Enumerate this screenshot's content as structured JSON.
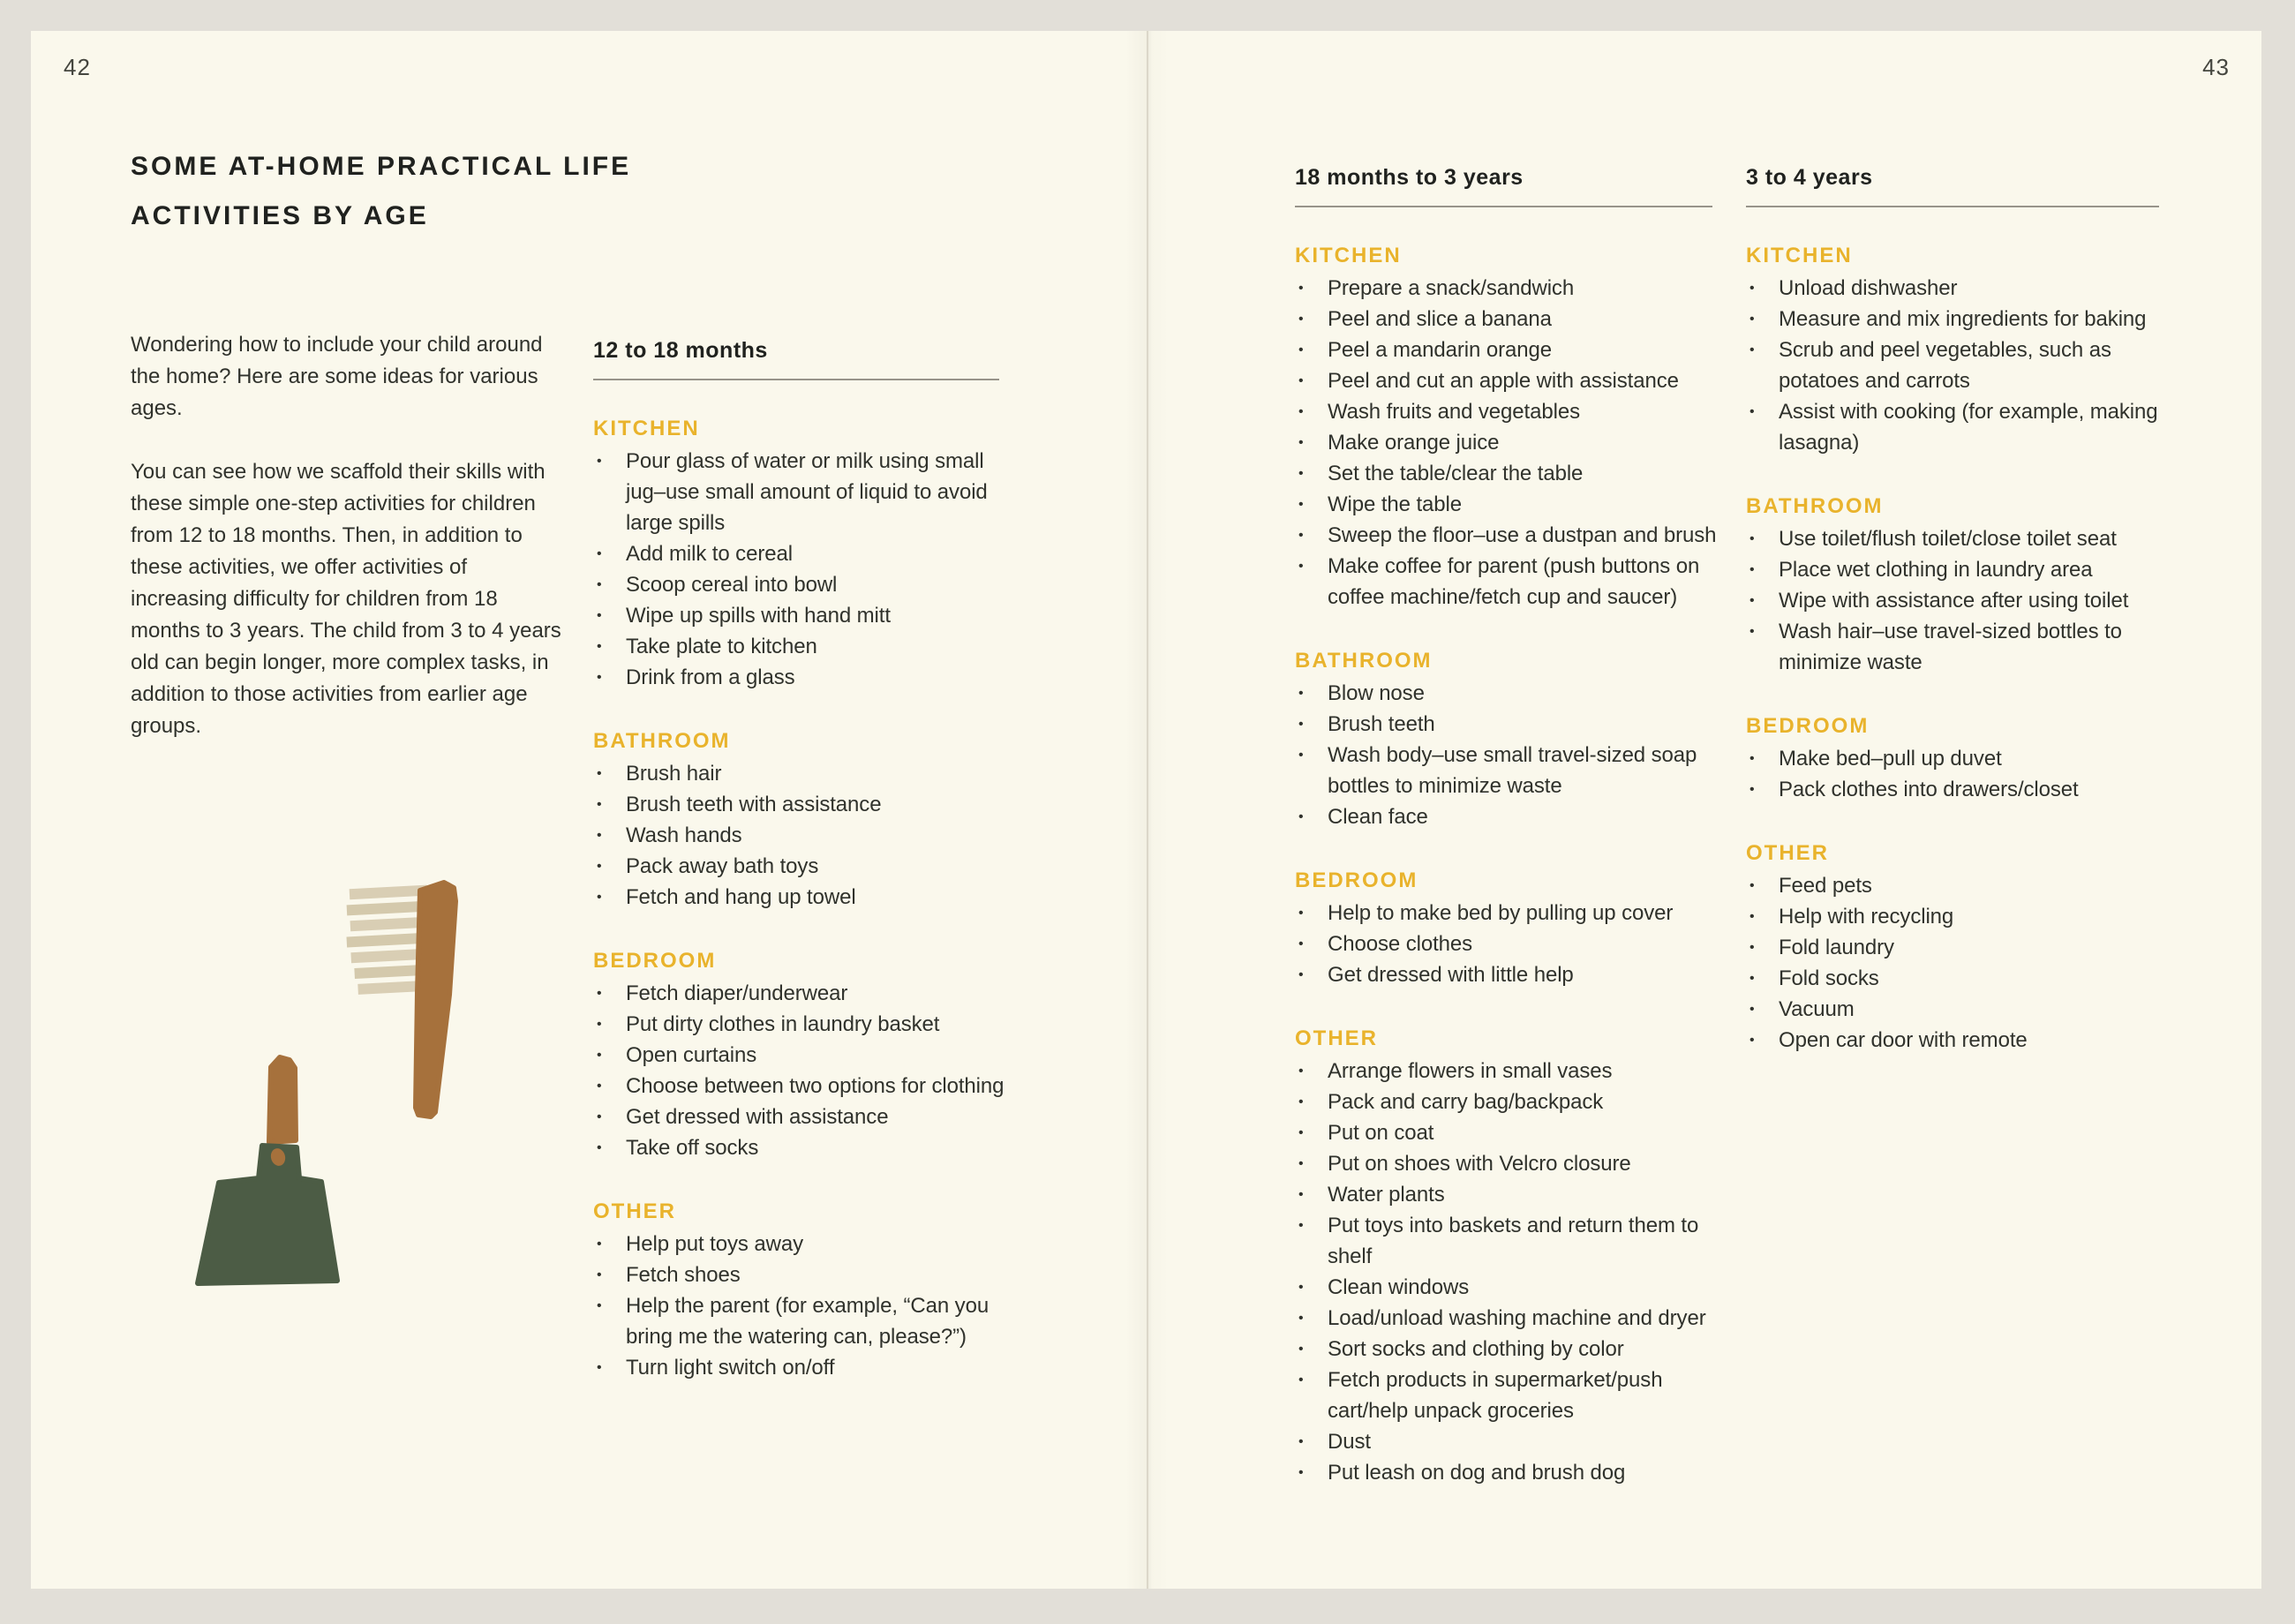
{
  "colors": {
    "frame_bg": "#E2DFD8",
    "page_bg": "#FAF8EC",
    "text": "#30322C",
    "accent_yellow": "#E9B32C",
    "rule_grey": "#97948A",
    "illustration_handle_brown": "#A6713C",
    "illustration_bristle_cream": "#D8CDB2",
    "illustration_pan_green": "#4C5C45"
  },
  "left_page": {
    "page_number": "42",
    "title_lines": [
      "SOME AT-HOME PRACTICAL LIFE",
      "ACTIVITIES BY AGE"
    ],
    "intro_paragraphs": [
      "Wondering how to include your child around the home? Here are some ideas for various ages.",
      "You can see how we scaffold their skills with these simple one-step activities for children from 12 to 18 months. Then, in addition to these activities, we offer activities of increasing difficulty for children from 18 months to 3 years. The child from 3 to 4 years old can begin longer, more complex tasks, in addition to those activities from earlier age groups."
    ],
    "illustration": "brush-and-dustpan-collage",
    "column": {
      "header": "12 to 18 months",
      "sections": [
        {
          "heading": "KITCHEN",
          "items": [
            "Pour glass of water or milk using small jug–use small amount of liquid to avoid large spills",
            "Add milk to cereal",
            "Scoop cereal into bowl",
            "Wipe up spills with hand mitt",
            "Take plate to kitchen",
            "Drink from a glass"
          ]
        },
        {
          "heading": "BATHROOM",
          "items": [
            "Brush hair",
            "Brush teeth with assistance",
            "Wash hands",
            "Pack away bath toys",
            "Fetch and hang up towel"
          ]
        },
        {
          "heading": "BEDROOM",
          "items": [
            "Fetch diaper/underwear",
            "Put dirty clothes in laundry basket",
            "Open curtains",
            "Choose between two options for clothing",
            "Get dressed with assistance",
            "Take off socks"
          ]
        },
        {
          "heading": "OTHER",
          "items": [
            "Help put toys away",
            "Fetch shoes",
            "Help the parent (for example, “Can you bring me the watering can, please?”)",
            "Turn light switch on/off"
          ]
        }
      ]
    }
  },
  "right_page": {
    "page_number": "43",
    "columns": [
      {
        "header": "18 months to 3 years",
        "sections": [
          {
            "heading": "KITCHEN",
            "items": [
              "Prepare a snack/sandwich",
              "Peel and slice a banana",
              "Peel a mandarin orange",
              "Peel and cut an apple with assistance",
              "Wash fruits and vegetables",
              "Make orange juice",
              "Set the table/clear the table",
              "Wipe the table",
              "Sweep the floor–use a dustpan and brush",
              "Make coffee for parent (push buttons on coffee machine/fetch cup and saucer)"
            ]
          },
          {
            "heading": "BATHROOM",
            "items": [
              "Blow nose",
              "Brush teeth",
              "Wash body–use small travel-sized soap bottles to minimize waste",
              "Clean face"
            ]
          },
          {
            "heading": "BEDROOM",
            "items": [
              "Help to make bed by pulling up cover",
              "Choose clothes",
              "Get dressed with little help"
            ]
          },
          {
            "heading": "OTHER",
            "items": [
              "Arrange flowers in small vases",
              "Pack and carry bag/backpack",
              "Put on coat",
              "Put on shoes with Velcro closure",
              "Water plants",
              "Put toys into baskets and return them to shelf",
              "Clean windows",
              "Load/unload washing machine and dryer",
              "Sort socks and clothing by color",
              "Fetch products in supermarket/push cart/help unpack groceries",
              "Dust",
              "Put leash on dog and brush dog"
            ]
          }
        ]
      },
      {
        "header": "3 to 4 years",
        "sections": [
          {
            "heading": "KITCHEN",
            "items": [
              "Unload dishwasher",
              "Measure and mix ingredients for baking",
              "Scrub and peel vegetables, such as potatoes and carrots",
              "Assist with cooking (for example, making lasagna)"
            ]
          },
          {
            "heading": "BATHROOM",
            "items": [
              "Use toilet/flush toilet/close toilet seat",
              "Place wet clothing in laundry area",
              "Wipe with assistance after using toilet",
              "Wash hair–use travel-sized bottles to minimize waste"
            ]
          },
          {
            "heading": "BEDROOM",
            "items": [
              "Make bed–pull up duvet",
              "Pack clothes into drawers/closet"
            ]
          },
          {
            "heading": "OTHER",
            "items": [
              "Feed pets",
              "Help with recycling",
              "Fold laundry",
              "Fold socks",
              "Vacuum",
              "Open car door with remote"
            ]
          }
        ]
      }
    ]
  }
}
